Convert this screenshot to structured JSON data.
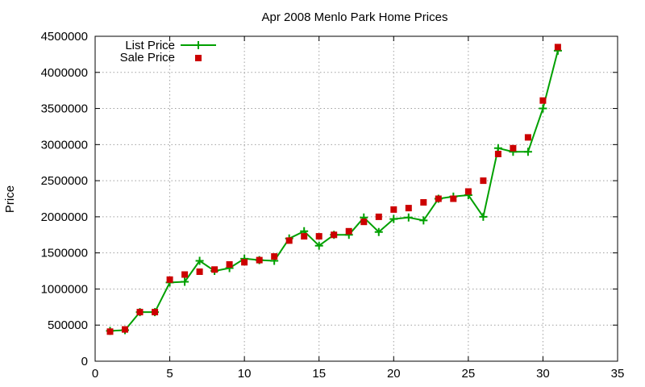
{
  "chart_data": {
    "type": "line",
    "title": "Apr 2008 Menlo Park Home Prices",
    "xlabel": "",
    "ylabel": "Price",
    "xlim": [
      0,
      35
    ],
    "ylim": [
      0,
      4500000
    ],
    "xticks": [
      0,
      5,
      10,
      15,
      20,
      25,
      30,
      35
    ],
    "yticks": [
      0,
      500000,
      1000000,
      1500000,
      2000000,
      2500000,
      3000000,
      3500000,
      4000000,
      4500000
    ],
    "xtick_labels": [
      "0",
      "5",
      "10",
      "15",
      "20",
      "25",
      "30",
      "35"
    ],
    "ytick_labels": [
      "0",
      "500000",
      "1000000",
      "1500000",
      "2000000",
      "2500000",
      "3000000",
      "3500000",
      "4000000",
      "4500000"
    ],
    "grid": true,
    "legend_position": "top-left",
    "x": [
      1,
      2,
      3,
      4,
      5,
      6,
      7,
      8,
      9,
      10,
      11,
      12,
      13,
      14,
      15,
      16,
      17,
      18,
      19,
      20,
      21,
      22,
      23,
      24,
      25,
      26,
      27,
      28,
      29,
      30,
      31
    ],
    "series": [
      {
        "name": "List Price",
        "style": "line-plus",
        "color": "#00a000",
        "values": [
          420000,
          430000,
          680000,
          680000,
          1090000,
          1100000,
          1390000,
          1250000,
          1290000,
          1420000,
          1400000,
          1390000,
          1700000,
          1800000,
          1600000,
          1750000,
          1750000,
          1990000,
          1790000,
          1970000,
          1990000,
          1950000,
          2250000,
          2280000,
          2300000,
          2000000,
          2950000,
          2900000,
          2900000,
          3500000,
          4300000
        ]
      },
      {
        "name": "Sale Price",
        "style": "square-points",
        "color": "#cc0000",
        "values": [
          410000,
          440000,
          680000,
          680000,
          1130000,
          1200000,
          1240000,
          1270000,
          1340000,
          1370000,
          1400000,
          1450000,
          1670000,
          1730000,
          1730000,
          1750000,
          1800000,
          1930000,
          2000000,
          2100000,
          2120000,
          2200000,
          2250000,
          2250000,
          2350000,
          2500000,
          2870000,
          2950000,
          3100000,
          3610000,
          4350000
        ]
      }
    ]
  }
}
